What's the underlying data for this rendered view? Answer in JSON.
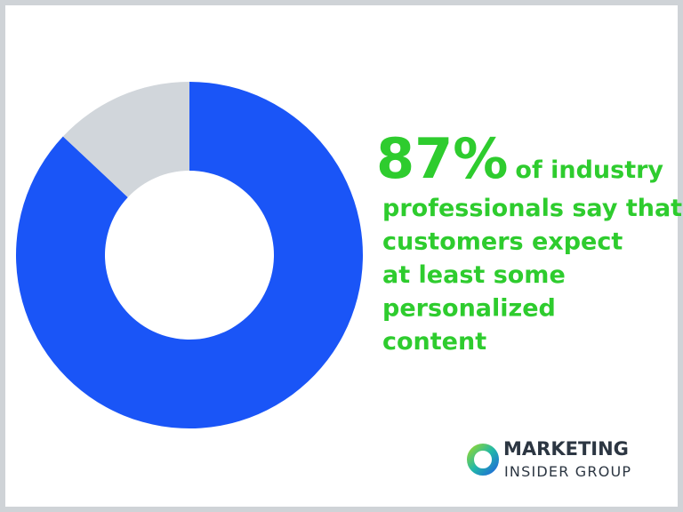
{
  "chart_data": {
    "type": "donut",
    "values": [
      87,
      13
    ],
    "value_labels": [
      "87%",
      null
    ],
    "colors": [
      "#1a55f7",
      "#d1d6db"
    ],
    "caption_lines": [
      "of industry",
      "professionals say that",
      "customers expect",
      "at least some",
      "personalized",
      "content"
    ]
  },
  "logo": {
    "line1": "MARKETING",
    "line2": "INSIDER GROUP"
  }
}
